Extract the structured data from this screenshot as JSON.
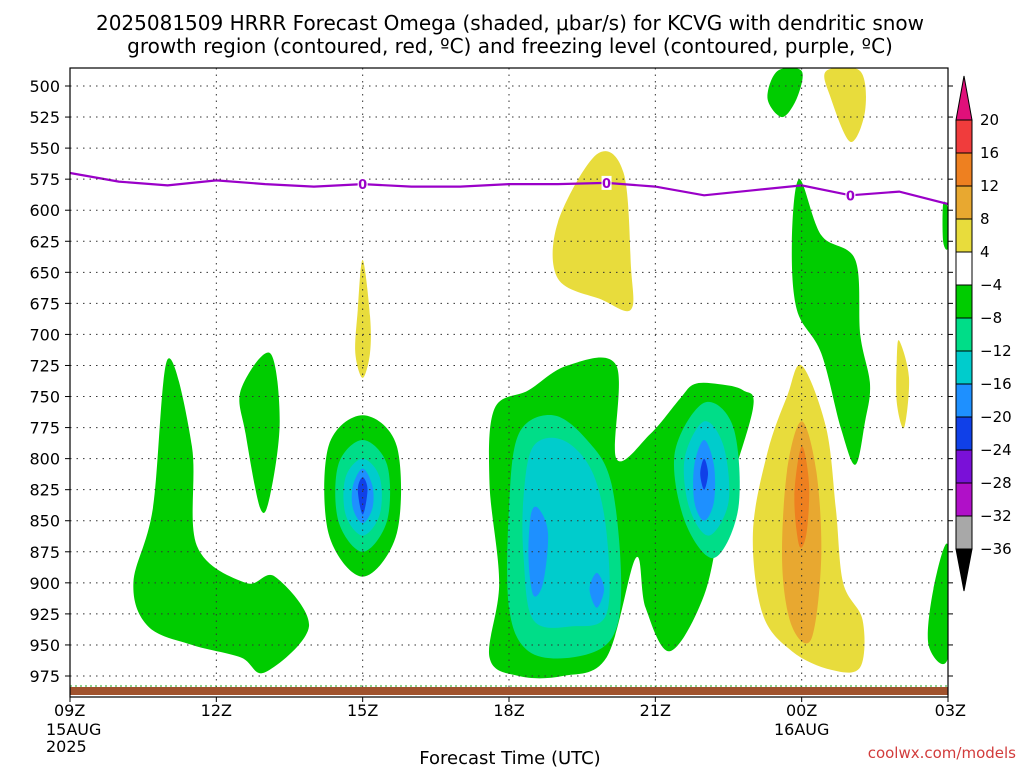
{
  "title": {
    "line1": "2025081509 HRRR Forecast Omega (shaded, μbar/s) for KCVG with dendritic snow",
    "line2": "growth region (contoured, red, ºC) and freezing level (contoured, purple, ºC)"
  },
  "credit": "coolwx.com/models",
  "colors": {
    "green_dark": "#00cc00",
    "green_med": "#00dd88",
    "teal": "#00cccc",
    "blue_light": "#1e90ff",
    "blue": "#1040e8",
    "yellow": "#e8dc3c",
    "orange_light": "#e8a830",
    "orange": "#ee8020",
    "freezing_line": "#9a00c8",
    "ground": "#a0522d"
  },
  "chart_data": {
    "type": "heatmap",
    "title": "2025081509 HRRR Forecast Omega (shaded, μbar/s) for KCVG with dendritic snow growth region (contoured, red, ºC) and freezing level (contoured, purple, ºC)",
    "xlabel": "Forecast Time (UTC)",
    "ylabel": "",
    "x_hours_range": [
      9,
      27
    ],
    "ylim": [
      500,
      985
    ],
    "y_axis_inverted": true,
    "grid": true,
    "x_ticks": [
      {
        "hour": 9,
        "label": "09Z",
        "sub1": "15AUG",
        "sub2": "2025"
      },
      {
        "hour": 12,
        "label": "12Z",
        "sub1": "",
        "sub2": ""
      },
      {
        "hour": 15,
        "label": "15Z",
        "sub1": "",
        "sub2": ""
      },
      {
        "hour": 18,
        "label": "18Z",
        "sub1": "",
        "sub2": ""
      },
      {
        "hour": 21,
        "label": "21Z",
        "sub1": "",
        "sub2": ""
      },
      {
        "hour": 24,
        "label": "00Z",
        "sub1": "16AUG",
        "sub2": ""
      },
      {
        "hour": 27,
        "label": "03Z",
        "sub1": "",
        "sub2": ""
      }
    ],
    "y_ticks": [
      500,
      525,
      550,
      575,
      600,
      625,
      650,
      675,
      700,
      725,
      750,
      775,
      800,
      825,
      850,
      875,
      900,
      925,
      950,
      975
    ],
    "colorbar": {
      "labels": [
        "20",
        "16",
        "12",
        "8",
        "4",
        "−4",
        "−8",
        "−12",
        "−16",
        "−20",
        "−24",
        "−28",
        "−32",
        "−36"
      ],
      "bins": [
        {
          "lo": 20,
          "hi": null,
          "color": "#e0107a"
        },
        {
          "lo": 16,
          "hi": 20,
          "color": "#f03c3c"
        },
        {
          "lo": 12,
          "hi": 16,
          "color": "#ee8020"
        },
        {
          "lo": 8,
          "hi": 12,
          "color": "#e8a830"
        },
        {
          "lo": 4,
          "hi": 8,
          "color": "#e8dc3c"
        },
        {
          "lo": -4,
          "hi": 4,
          "color": "#ffffff"
        },
        {
          "lo": -8,
          "hi": -4,
          "color": "#00cc00"
        },
        {
          "lo": -12,
          "hi": -8,
          "color": "#00dd88"
        },
        {
          "lo": -16,
          "hi": -12,
          "color": "#00cccc"
        },
        {
          "lo": -20,
          "hi": -16,
          "color": "#1e90ff"
        },
        {
          "lo": -24,
          "hi": -20,
          "color": "#1040e8"
        },
        {
          "lo": -28,
          "hi": -24,
          "color": "#7a10d8"
        },
        {
          "lo": -32,
          "hi": -28,
          "color": "#b010c8"
        },
        {
          "lo": -36,
          "hi": -32,
          "color": "#a8a8a8"
        },
        {
          "lo": null,
          "hi": -36,
          "color": "#000000"
        }
      ]
    },
    "freezing_level": {
      "label": "0",
      "points": [
        {
          "hour": 9.0,
          "p": 570
        },
        {
          "hour": 10.0,
          "p": 577
        },
        {
          "hour": 11.0,
          "p": 580
        },
        {
          "hour": 12.0,
          "p": 576
        },
        {
          "hour": 13.0,
          "p": 579
        },
        {
          "hour": 14.0,
          "p": 581
        },
        {
          "hour": 15.0,
          "p": 579
        },
        {
          "hour": 16.0,
          "p": 581
        },
        {
          "hour": 17.0,
          "p": 581
        },
        {
          "hour": 18.0,
          "p": 579
        },
        {
          "hour": 19.0,
          "p": 579
        },
        {
          "hour": 20.0,
          "p": 578
        },
        {
          "hour": 21.0,
          "p": 581
        },
        {
          "hour": 22.0,
          "p": 588
        },
        {
          "hour": 23.0,
          "p": 584
        },
        {
          "hour": 24.0,
          "p": 580
        },
        {
          "hour": 25.0,
          "p": 588
        },
        {
          "hour": 26.0,
          "p": 585
        },
        {
          "hour": 27.0,
          "p": 595
        }
      ],
      "label_hours": [
        15,
        20,
        25
      ]
    },
    "omega_regions": [
      {
        "value_bin": [
          -8,
          -4
        ],
        "color_key": "green_dark",
        "points": [
          [
            11.0,
            720
          ],
          [
            11.5,
            790
          ],
          [
            11.6,
            870
          ],
          [
            12.6,
            900
          ],
          [
            13.2,
            895
          ],
          [
            13.9,
            935
          ],
          [
            13.0,
            972
          ],
          [
            12.5,
            960
          ],
          [
            11.5,
            950
          ],
          [
            10.6,
            935
          ],
          [
            10.3,
            900
          ],
          [
            10.7,
            840
          ]
        ]
      },
      {
        "value_bin": [
          -8,
          -4
        ],
        "color_key": "green_dark",
        "points": [
          [
            13.1,
            715
          ],
          [
            13.3,
            770
          ],
          [
            13.1,
            830
          ],
          [
            12.9,
            840
          ],
          [
            12.6,
            780
          ],
          [
            12.5,
            745
          ]
        ]
      },
      {
        "value_bin": [
          -8,
          -4
        ],
        "color_key": "green_dark",
        "points": [
          [
            15.0,
            765
          ],
          [
            15.7,
            790
          ],
          [
            15.7,
            860
          ],
          [
            15.0,
            895
          ],
          [
            14.3,
            860
          ],
          [
            14.3,
            790
          ]
        ]
      },
      {
        "value_bin": [
          -12,
          -8
        ],
        "color_key": "green_med",
        "points": [
          [
            15.0,
            785
          ],
          [
            15.5,
            805
          ],
          [
            15.5,
            850
          ],
          [
            15.0,
            875
          ],
          [
            14.5,
            850
          ],
          [
            14.5,
            805
          ]
        ]
      },
      {
        "value_bin": [
          -16,
          -12
        ],
        "color_key": "teal",
        "points": [
          [
            15.0,
            800
          ],
          [
            15.35,
            815
          ],
          [
            15.35,
            845
          ],
          [
            15.0,
            862
          ],
          [
            14.65,
            845
          ],
          [
            14.65,
            815
          ]
        ]
      },
      {
        "value_bin": [
          -20,
          -16
        ],
        "color_key": "blue_light",
        "points": [
          [
            15.0,
            808
          ],
          [
            15.2,
            822
          ],
          [
            15.2,
            840
          ],
          [
            15.0,
            852
          ],
          [
            14.8,
            840
          ],
          [
            14.8,
            822
          ]
        ]
      },
      {
        "value_bin": [
          -24,
          -20
        ],
        "color_key": "blue",
        "points": [
          [
            15.0,
            815
          ],
          [
            15.1,
            825
          ],
          [
            15.0,
            845
          ],
          [
            14.9,
            825
          ]
        ]
      },
      {
        "value_bin": [
          -8,
          -4
        ],
        "color_key": "green_dark",
        "points": [
          [
            17.7,
            760
          ],
          [
            18.4,
            745
          ],
          [
            19.2,
            725
          ],
          [
            20.2,
            725
          ],
          [
            20.2,
            800
          ],
          [
            20.9,
            780
          ],
          [
            21.5,
            752
          ],
          [
            21.8,
            740
          ],
          [
            22.3,
            740
          ],
          [
            22.8,
            745
          ],
          [
            23.0,
            760
          ],
          [
            22.4,
            840
          ],
          [
            22.0,
            910
          ],
          [
            21.3,
            955
          ],
          [
            20.8,
            920
          ],
          [
            20.6,
            880
          ],
          [
            20.0,
            960
          ],
          [
            19.1,
            975
          ],
          [
            18.2,
            975
          ],
          [
            17.6,
            960
          ],
          [
            17.8,
            900
          ],
          [
            17.6,
            820
          ]
        ]
      },
      {
        "value_bin": [
          -12,
          -8
        ],
        "color_key": "green_med",
        "points": [
          [
            18.2,
            780
          ],
          [
            18.9,
            765
          ],
          [
            19.6,
            785
          ],
          [
            20.1,
            820
          ],
          [
            20.3,
            900
          ],
          [
            20.1,
            945
          ],
          [
            19.3,
            960
          ],
          [
            18.4,
            955
          ],
          [
            18.0,
            920
          ],
          [
            18.0,
            840
          ]
        ]
      },
      {
        "value_bin": [
          -16,
          -12
        ],
        "color_key": "teal",
        "points": [
          [
            18.5,
            790
          ],
          [
            19.1,
            785
          ],
          [
            19.7,
            810
          ],
          [
            20.0,
            860
          ],
          [
            20.0,
            925
          ],
          [
            19.3,
            935
          ],
          [
            18.5,
            930
          ],
          [
            18.3,
            880
          ],
          [
            18.3,
            830
          ]
        ]
      },
      {
        "value_bin": [
          -20,
          -16
        ],
        "color_key": "blue_light",
        "points": [
          [
            18.6,
            840
          ],
          [
            18.8,
            860
          ],
          [
            18.7,
            900
          ],
          [
            18.5,
            910
          ],
          [
            18.4,
            880
          ],
          [
            18.45,
            845
          ]
        ]
      },
      {
        "value_bin": [
          -20,
          -16
        ],
        "color_key": "blue_light",
        "points": [
          [
            19.8,
            892
          ],
          [
            19.95,
            905
          ],
          [
            19.8,
            920
          ],
          [
            19.65,
            905
          ]
        ]
      },
      {
        "value_bin": [
          -12,
          -8
        ],
        "color_key": "green_med",
        "points": [
          [
            22.0,
            755
          ],
          [
            22.6,
            775
          ],
          [
            22.7,
            840
          ],
          [
            22.2,
            880
          ],
          [
            21.6,
            850
          ],
          [
            21.4,
            795
          ]
        ]
      },
      {
        "value_bin": [
          -16,
          -12
        ],
        "color_key": "teal",
        "points": [
          [
            22.0,
            770
          ],
          [
            22.4,
            790
          ],
          [
            22.5,
            835
          ],
          [
            22.1,
            862
          ],
          [
            21.7,
            840
          ],
          [
            21.6,
            800
          ]
        ]
      },
      {
        "value_bin": [
          -20,
          -16
        ],
        "color_key": "blue_light",
        "points": [
          [
            22.0,
            785
          ],
          [
            22.2,
            805
          ],
          [
            22.2,
            835
          ],
          [
            22.0,
            850
          ],
          [
            21.8,
            835
          ],
          [
            21.8,
            805
          ]
        ]
      },
      {
        "value_bin": [
          -24,
          -20
        ],
        "color_key": "blue",
        "points": [
          [
            22.0,
            800
          ],
          [
            22.08,
            812
          ],
          [
            22.0,
            825
          ],
          [
            21.92,
            812
          ]
        ]
      },
      {
        "value_bin": [
          -8,
          -4
        ],
        "color_key": "green_dark",
        "points": [
          [
            23.5,
            488
          ],
          [
            24.0,
            488
          ],
          [
            23.9,
            510
          ],
          [
            23.6,
            525
          ],
          [
            23.3,
            510
          ]
        ]
      },
      {
        "value_bin": [
          -8,
          -4
        ],
        "color_key": "green_dark",
        "points": [
          [
            23.95,
            575
          ],
          [
            24.4,
            620
          ],
          [
            25.1,
            640
          ],
          [
            25.2,
            700
          ],
          [
            25.4,
            740
          ],
          [
            25.3,
            770
          ],
          [
            25.1,
            805
          ],
          [
            24.8,
            775
          ],
          [
            24.4,
            715
          ],
          [
            23.9,
            680
          ],
          [
            23.8,
            625
          ]
        ]
      },
      {
        "value_bin": [
          -8,
          -4
        ],
        "color_key": "green_dark",
        "points": [
          [
            26.9,
            595
          ],
          [
            27.0,
            600
          ],
          [
            27.0,
            630
          ],
          [
            26.9,
            625
          ]
        ]
      },
      {
        "value_bin": [
          -8,
          -4
        ],
        "color_key": "green_dark",
        "points": [
          [
            27.0,
            870
          ],
          [
            27.0,
            960
          ],
          [
            26.6,
            950
          ],
          [
            26.7,
            905
          ]
        ]
      },
      {
        "value_bin": [
          4,
          8
        ],
        "color_key": "yellow",
        "points": [
          [
            15.0,
            640
          ],
          [
            15.15,
            685
          ],
          [
            15.15,
            715
          ],
          [
            15.0,
            735
          ],
          [
            14.85,
            715
          ],
          [
            14.9,
            680
          ]
        ]
      },
      {
        "value_bin": [
          4,
          8
        ],
        "color_key": "yellow",
        "points": [
          [
            19.8,
            555
          ],
          [
            20.35,
            570
          ],
          [
            20.5,
            645
          ],
          [
            20.5,
            680
          ],
          [
            19.9,
            672
          ],
          [
            19.0,
            655
          ],
          [
            19.0,
            610
          ]
        ]
      },
      {
        "value_bin": [
          4,
          8
        ],
        "color_key": "yellow",
        "points": [
          [
            24.5,
            488
          ],
          [
            25.2,
            488
          ],
          [
            25.3,
            520
          ],
          [
            25.0,
            545
          ],
          [
            24.6,
            510
          ]
        ]
      },
      {
        "value_bin": [
          4,
          8
        ],
        "color_key": "yellow",
        "points": [
          [
            26.0,
            705
          ],
          [
            26.2,
            735
          ],
          [
            26.1,
            775
          ],
          [
            25.95,
            755
          ],
          [
            25.95,
            720
          ]
        ]
      },
      {
        "value_bin": [
          4,
          8
        ],
        "color_key": "yellow",
        "points": [
          [
            24.0,
            725
          ],
          [
            24.5,
            775
          ],
          [
            24.7,
            840
          ],
          [
            24.85,
            900
          ],
          [
            25.25,
            930
          ],
          [
            25.2,
            968
          ],
          [
            24.6,
            970
          ],
          [
            23.8,
            955
          ],
          [
            23.2,
            925
          ],
          [
            23.0,
            860
          ],
          [
            23.3,
            795
          ],
          [
            23.7,
            750
          ]
        ]
      },
      {
        "value_bin": [
          8,
          12
        ],
        "color_key": "orange_light",
        "points": [
          [
            24.0,
            770
          ],
          [
            24.3,
            810
          ],
          [
            24.4,
            880
          ],
          [
            24.2,
            945
          ],
          [
            23.8,
            935
          ],
          [
            23.6,
            885
          ],
          [
            23.7,
            810
          ]
        ]
      },
      {
        "value_bin": [
          12,
          16
        ],
        "color_key": "orange",
        "points": [
          [
            24.0,
            790
          ],
          [
            24.15,
            820
          ],
          [
            24.1,
            860
          ],
          [
            23.95,
            870
          ],
          [
            23.85,
            830
          ]
        ]
      }
    ]
  }
}
